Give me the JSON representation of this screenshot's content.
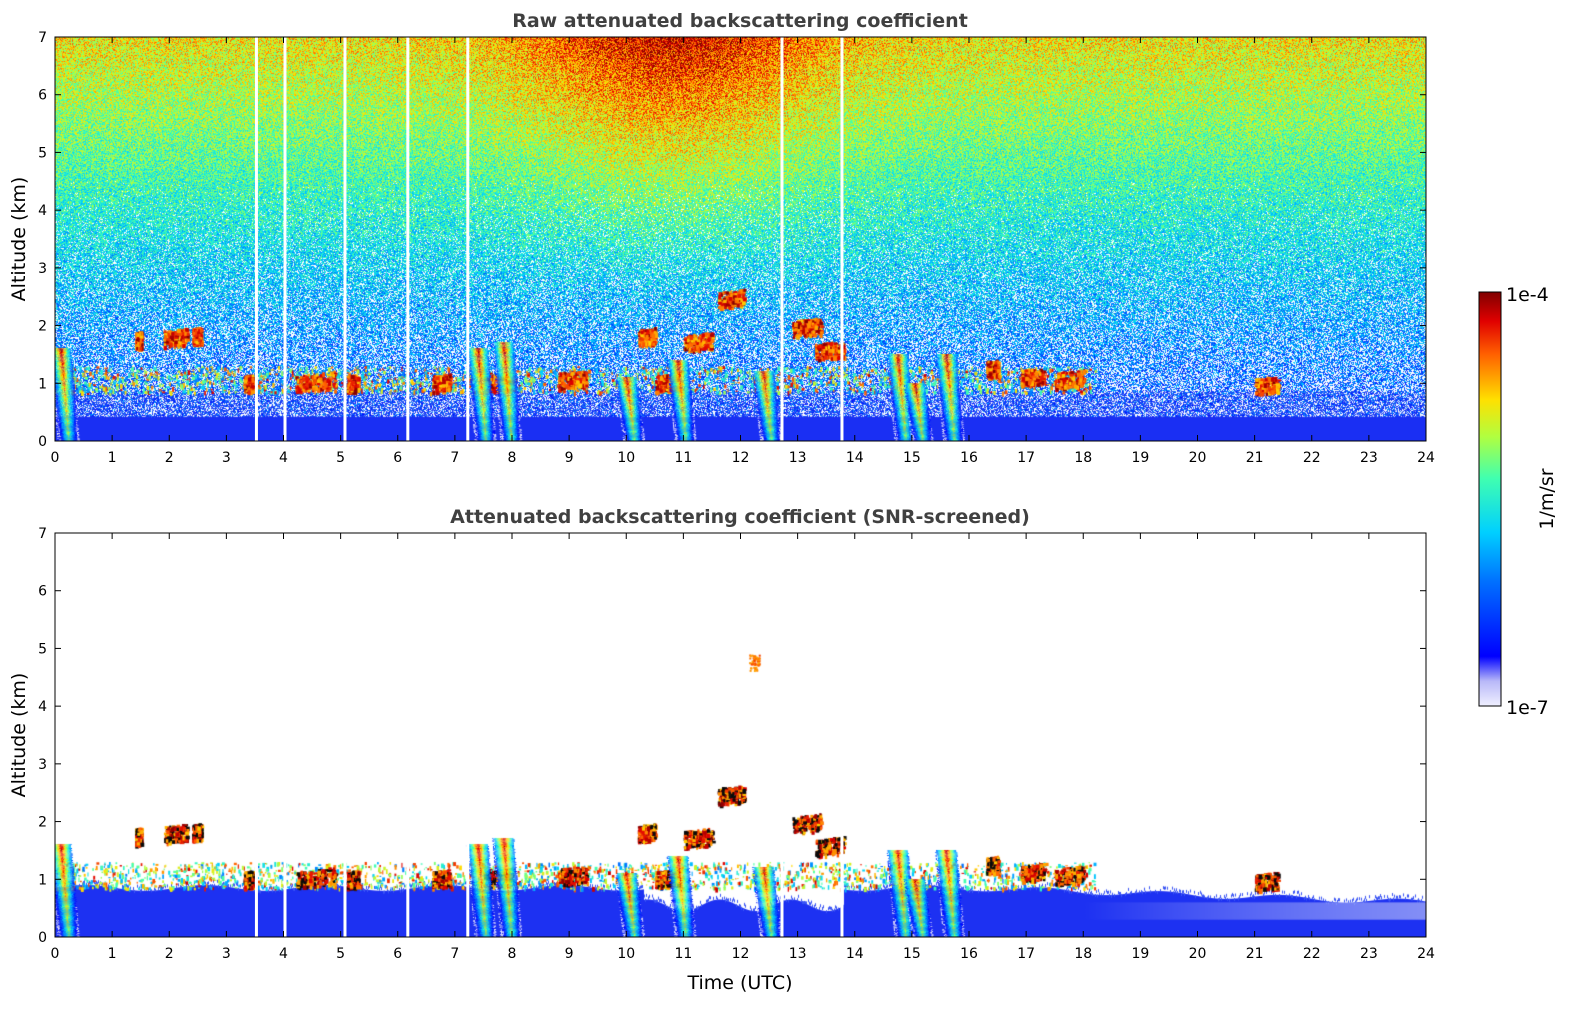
{
  "chart_data": [
    {
      "type": "heatmap",
      "title": "Raw attenuated backscattering coefficient",
      "xlabel": "",
      "ylabel": "Altitude (km)",
      "xlim": [
        0,
        24
      ],
      "ylim": [
        0,
        7
      ],
      "xticks": [
        "0",
        "1",
        "2",
        "3",
        "4",
        "5",
        "6",
        "7",
        "8",
        "9",
        "10",
        "11",
        "12",
        "13",
        "14",
        "15",
        "16",
        "17",
        "18",
        "19",
        "20",
        "21",
        "22",
        "23",
        "24"
      ],
      "yticks": [
        "0",
        "1",
        "2",
        "3",
        "4",
        "5",
        "6",
        "7"
      ],
      "screened": false
    },
    {
      "type": "heatmap",
      "title": "Attenuated backscattering coefficient (SNR-screened)",
      "xlabel": "Time (UTC)",
      "ylabel": "Altitude (km)",
      "xlim": [
        0,
        24
      ],
      "ylim": [
        0,
        7
      ],
      "xticks": [
        "0",
        "1",
        "2",
        "3",
        "4",
        "5",
        "6",
        "7",
        "8",
        "9",
        "10",
        "11",
        "12",
        "13",
        "14",
        "15",
        "16",
        "17",
        "18",
        "19",
        "20",
        "21",
        "22",
        "23",
        "24"
      ],
      "yticks": [
        "0",
        "1",
        "2",
        "3",
        "4",
        "5",
        "6",
        "7"
      ],
      "screened": true
    }
  ],
  "colorbar": {
    "label": "1/m/sr",
    "max_label": "1e-4",
    "min_label": "1e-7",
    "scale": "log",
    "colormap": "jet"
  },
  "features": {
    "data_gaps_hours": [
      3.5,
      4.0,
      5.05,
      6.15,
      7.2,
      12.7,
      13.75
    ],
    "aerosol_plumes": [
      {
        "t": 0.1,
        "top_km": 1.6
      },
      {
        "t": 7.4,
        "top_km": 1.6
      },
      {
        "t": 7.85,
        "top_km": 1.7
      },
      {
        "t": 10.0,
        "top_km": 1.1
      },
      {
        "t": 10.9,
        "top_km": 1.4
      },
      {
        "t": 12.4,
        "top_km": 1.2
      },
      {
        "t": 14.75,
        "top_km": 1.5
      },
      {
        "t": 15.05,
        "top_km": 1.0
      },
      {
        "t": 15.6,
        "top_km": 1.5
      }
    ],
    "cloud_patches": [
      {
        "t0": 1.4,
        "t1": 1.5,
        "z": 1.75
      },
      {
        "t0": 1.9,
        "t1": 2.3,
        "z": 1.78
      },
      {
        "t0": 2.4,
        "t1": 2.55,
        "z": 1.82
      },
      {
        "t0": 3.3,
        "t1": 3.45,
        "z": 1.0
      },
      {
        "t0": 4.2,
        "t1": 4.9,
        "z": 1.0
      },
      {
        "t0": 5.1,
        "t1": 5.3,
        "z": 1.0
      },
      {
        "t0": 6.6,
        "t1": 6.9,
        "z": 1.0
      },
      {
        "t0": 7.5,
        "t1": 8.0,
        "z": 1.0
      },
      {
        "t0": 8.8,
        "t1": 9.3,
        "z": 1.05
      },
      {
        "t0": 10.2,
        "t1": 10.5,
        "z": 1.8
      },
      {
        "t0": 10.5,
        "t1": 10.9,
        "z": 1.0
      },
      {
        "t0": 11.0,
        "t1": 11.5,
        "z": 1.7
      },
      {
        "t0": 11.6,
        "t1": 12.05,
        "z": 2.45
      },
      {
        "t0": 12.9,
        "t1": 13.4,
        "z": 1.95
      },
      {
        "t0": 13.3,
        "t1": 13.8,
        "z": 1.55
      },
      {
        "t0": 16.3,
        "t1": 16.5,
        "z": 1.25
      },
      {
        "t0": 16.9,
        "t1": 17.3,
        "z": 1.1
      },
      {
        "t0": 17.5,
        "t1": 18.0,
        "z": 1.05
      },
      {
        "t0": 21.0,
        "t1": 21.4,
        "z": 0.95
      }
    ]
  },
  "colors": {
    "background": "#ffffff",
    "title": "#404040",
    "surface_layer": "#1b2cf5"
  }
}
